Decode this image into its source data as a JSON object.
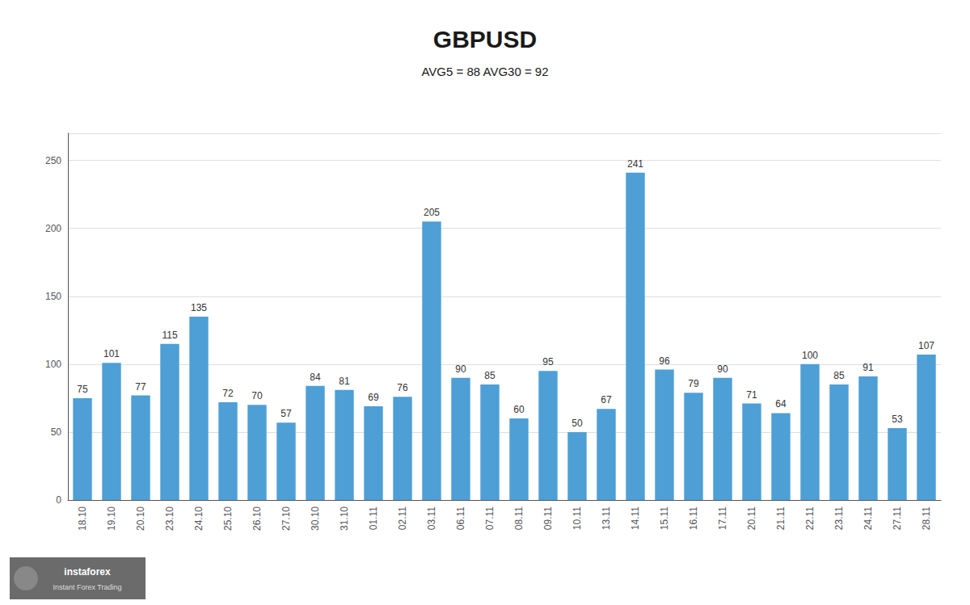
{
  "chart_data": {
    "type": "bar",
    "title": "GBPUSD",
    "subtitle": "AVG5 = 88 AVG30 = 92",
    "categories": [
      "18.10",
      "19.10",
      "20.10",
      "23.10",
      "24.10",
      "25.10",
      "26.10",
      "27.10",
      "30.10",
      "31.10",
      "01.11",
      "02.11",
      "03.11",
      "06.11",
      "07.11",
      "08.11",
      "09.11",
      "10.11",
      "13.11",
      "14.11",
      "15.11",
      "16.11",
      "17.11",
      "20.11",
      "21.11",
      "22.11",
      "23.11",
      "24.11",
      "27.11",
      "28.11"
    ],
    "values": [
      75,
      101,
      77,
      115,
      135,
      72,
      70,
      57,
      84,
      81,
      69,
      76,
      205,
      90,
      85,
      60,
      95,
      50,
      67,
      241,
      96,
      79,
      90,
      71,
      64,
      100,
      85,
      91,
      53,
      107
    ],
    "color": "#4d9fd6",
    "ylim": [
      0,
      270
    ],
    "yticks": [
      0,
      50,
      100,
      150,
      200,
      250
    ],
    "grid": true,
    "data_labels": true,
    "annotations": [
      "instaforex",
      "Instant Forex Trading"
    ]
  }
}
